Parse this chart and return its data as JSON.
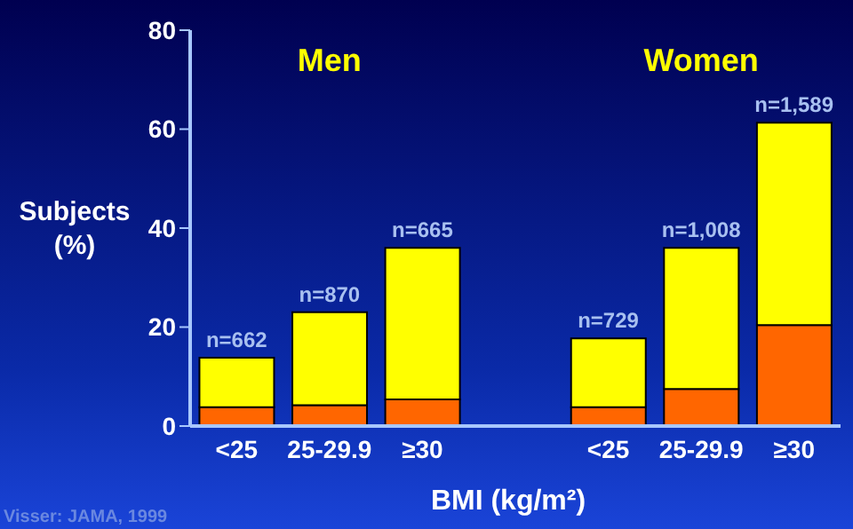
{
  "chart_data": {
    "type": "bar",
    "stacked": true,
    "ylabel": "Subjects (%)",
    "xlabel": "BMI (kg/m²)",
    "categories": [
      "<25",
      "25-29.9",
      "≥30",
      null,
      "<25",
      "25-29.9",
      "≥30"
    ],
    "series": [
      {
        "color": "#ff6600",
        "values": [
          3.8,
          4.2,
          5.4,
          null,
          3.8,
          7.5,
          20.4
        ]
      },
      {
        "color": "#ffff00",
        "values": [
          10.0,
          18.8,
          30.6,
          null,
          13.9,
          28.5,
          40.9
        ]
      }
    ],
    "ylim": [
      0,
      80
    ],
    "yticks": [
      0,
      20,
      40,
      60,
      80
    ],
    "annotations": [
      "n=662",
      "n=870",
      "n=665",
      "n=729",
      "n=1,008",
      "n=1,589",
      "Men",
      "Women",
      "Visser: JAMA, 1999"
    ]
  }
}
